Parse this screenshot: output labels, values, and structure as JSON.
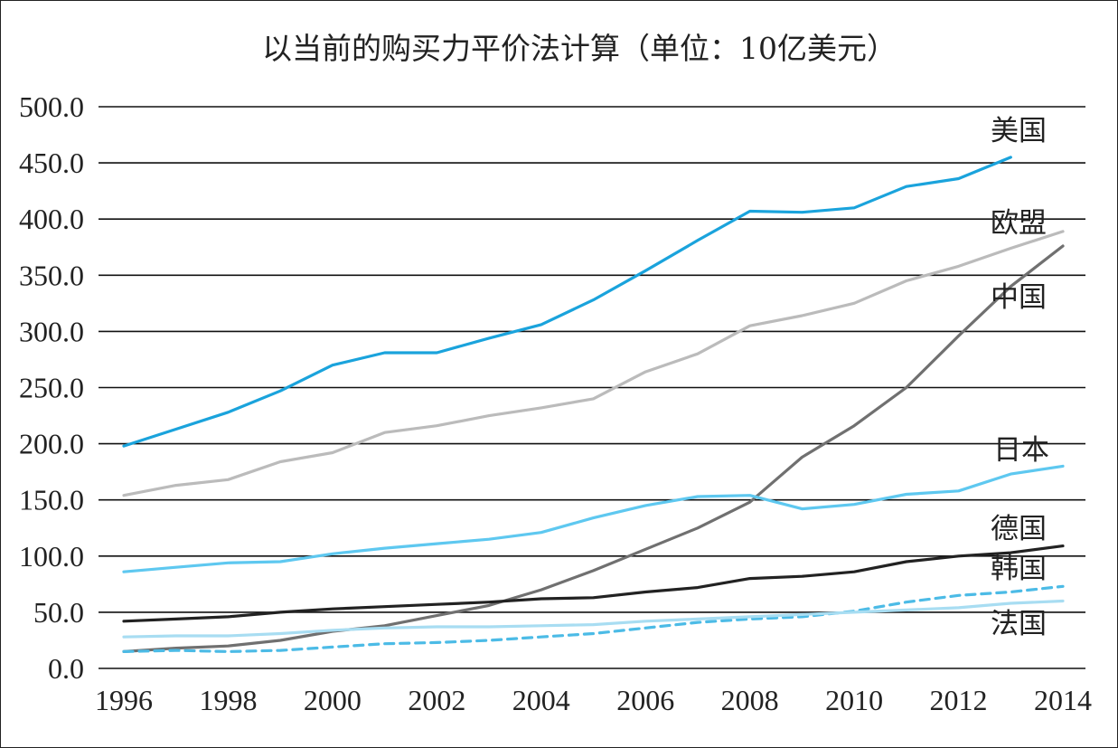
{
  "chart_data": {
    "type": "line",
    "title": "以当前的购买力平价法计算（单位：10亿美元）",
    "xlabel": "",
    "ylabel": "",
    "xlim": [
      1996,
      2014
    ],
    "ylim": [
      0,
      500
    ],
    "grid": "horizontal",
    "legend": "inline labels at line ends",
    "x_ticks": [
      "1996",
      "1998",
      "2000",
      "2002",
      "2004",
      "2006",
      "2008",
      "2010",
      "2012",
      "2014"
    ],
    "y_ticks": [
      "0.0",
      "50.0",
      "100.0",
      "150.0",
      "200.0",
      "250.0",
      "300.0",
      "350.0",
      "400.0",
      "450.0",
      "500.0"
    ],
    "x": [
      1996,
      1997,
      1998,
      1999,
      2000,
      2001,
      2002,
      2003,
      2004,
      2005,
      2006,
      2007,
      2008,
      2009,
      2010,
      2011,
      2012,
      2013,
      2014
    ],
    "series": [
      {
        "name": "美国",
        "color": "#1aa3dc",
        "dash": false,
        "values": [
          198,
          213,
          228,
          247,
          270,
          281,
          281,
          294,
          306,
          328,
          354,
          381,
          407,
          406,
          410,
          429,
          436,
          455,
          null
        ]
      },
      {
        "name": "欧盟",
        "color": "#bbbbbb",
        "dash": false,
        "values": [
          154,
          163,
          168,
          184,
          192,
          210,
          216,
          225,
          232,
          240,
          264,
          280,
          305,
          314,
          325,
          345,
          358,
          374,
          389
        ]
      },
      {
        "name": "中国",
        "color": "#707070",
        "dash": false,
        "values": [
          15,
          18,
          20,
          25,
          33,
          38,
          47,
          56,
          70,
          87,
          106,
          125,
          148,
          188,
          216,
          250,
          296,
          340,
          376
        ]
      },
      {
        "name": "日本",
        "color": "#5ec8f0",
        "dash": false,
        "values": [
          86,
          90,
          94,
          95,
          102,
          107,
          111,
          115,
          121,
          134,
          145,
          153,
          154,
          142,
          146,
          155,
          158,
          173,
          180
        ]
      },
      {
        "name": "德国",
        "color": "#222222",
        "dash": false,
        "values": [
          42,
          44,
          46,
          50,
          53,
          55,
          57,
          59,
          62,
          63,
          68,
          72,
          80,
          82,
          86,
          95,
          100,
          103,
          109
        ]
      },
      {
        "name": "韩国",
        "color": "#4cbbe6",
        "dash": true,
        "values": [
          15,
          16,
          15,
          16,
          19,
          22,
          23,
          25,
          28,
          31,
          36,
          41,
          44,
          46,
          51,
          59,
          65,
          68,
          73
        ]
      },
      {
        "name": "法国",
        "color": "#a8ddf2",
        "dash": false,
        "values": [
          28,
          29,
          29,
          31,
          34,
          36,
          37,
          37,
          38,
          39,
          42,
          44,
          46,
          48,
          50,
          52,
          54,
          58,
          60
        ]
      }
    ]
  }
}
